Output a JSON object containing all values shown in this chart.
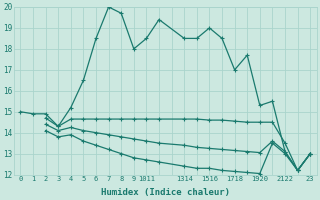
{
  "xlabel": "Humidex (Indice chaleur)",
  "bg_color": "#cce8e0",
  "line_color": "#1a7a6e",
  "grid_color": "#aad4cc",
  "ylim": [
    12,
    20
  ],
  "xlim": [
    -0.5,
    23.5
  ],
  "yticks": [
    12,
    13,
    14,
    15,
    16,
    17,
    18,
    19,
    20
  ],
  "curve1_x": [
    0,
    1,
    2,
    3,
    4,
    5,
    6,
    7,
    8,
    9,
    10,
    11,
    13,
    14,
    15,
    16,
    17,
    18,
    19,
    20,
    21,
    22,
    23
  ],
  "curve1_y": [
    15.0,
    14.9,
    14.9,
    14.3,
    15.2,
    16.5,
    18.5,
    20.0,
    19.7,
    18.0,
    18.5,
    19.4,
    18.5,
    18.5,
    19.0,
    18.5,
    17.0,
    17.7,
    15.3,
    15.5,
    13.1,
    12.2,
    13.0
  ],
  "curve2_x": [
    2,
    3,
    4,
    5,
    6,
    7,
    8,
    9,
    10,
    11,
    13,
    14,
    15,
    16,
    17,
    18,
    19,
    20,
    21,
    22,
    23
  ],
  "curve2_y": [
    14.7,
    14.3,
    14.65,
    14.65,
    14.65,
    14.65,
    14.65,
    14.65,
    14.65,
    14.65,
    14.65,
    14.65,
    14.6,
    14.6,
    14.55,
    14.5,
    14.5,
    14.5,
    13.5,
    12.2,
    13.0
  ],
  "curve3_x": [
    2,
    3,
    4,
    5,
    6,
    7,
    8,
    9,
    10,
    11,
    13,
    14,
    15,
    16,
    17,
    18,
    19,
    20,
    21,
    22,
    23
  ],
  "curve3_y": [
    14.4,
    14.1,
    14.25,
    14.1,
    14.0,
    13.9,
    13.8,
    13.7,
    13.6,
    13.5,
    13.4,
    13.3,
    13.25,
    13.2,
    13.15,
    13.1,
    13.05,
    13.6,
    13.1,
    12.2,
    13.0
  ],
  "curve4_x": [
    2,
    3,
    4,
    5,
    6,
    7,
    8,
    9,
    10,
    11,
    13,
    14,
    15,
    16,
    17,
    18,
    19,
    20,
    21,
    22,
    23
  ],
  "curve4_y": [
    14.1,
    13.8,
    13.9,
    13.6,
    13.4,
    13.2,
    13.0,
    12.8,
    12.7,
    12.6,
    12.4,
    12.3,
    12.3,
    12.2,
    12.15,
    12.1,
    12.05,
    13.5,
    13.0,
    12.2,
    13.0
  ]
}
